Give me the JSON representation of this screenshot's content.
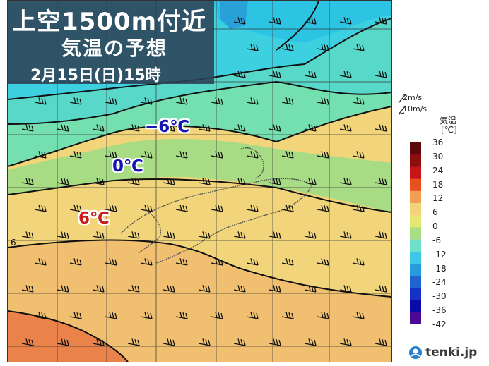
{
  "title": {
    "line1": "上空1500m付近",
    "line2": "気温の予想",
    "datetime": "2月15日(日)15時"
  },
  "contour_labels": [
    {
      "text": "−6℃",
      "color": "#1414b4"
    },
    {
      "text": "0℃",
      "color": "#1414b4"
    },
    {
      "text": "6℃",
      "color": "#c81e1e"
    }
  ],
  "map_edge_label": "6",
  "legend": {
    "wind_small": "2m/s",
    "wind_large": "10m/s",
    "title": "気温",
    "unit": "[℃]",
    "ticks": [
      "36",
      "30",
      "24",
      "18",
      "12",
      "6",
      "0",
      "-6",
      "-12",
      "-18",
      "-24",
      "-30",
      "-36",
      "-42"
    ],
    "colors": [
      "#5a0a0a",
      "#8c0f0f",
      "#c81414",
      "#e8501e",
      "#f0a050",
      "#f5d27a",
      "#e6e676",
      "#aade82",
      "#6ee0c8",
      "#3cc8e6",
      "#289bdc",
      "#1e64d2",
      "#1432c8",
      "#0a0aaa",
      "#4b0a96"
    ]
  },
  "brand": {
    "name": "tenki.jp"
  },
  "colors": {
    "ocean_cold": "#3cd8e0",
    "band_green": "#74e0b0",
    "band_lightgreen": "#a8dc84",
    "band_yellow": "#f2d57a",
    "band_orange": "#f0a858",
    "band_deeporange": "#e9834a"
  }
}
